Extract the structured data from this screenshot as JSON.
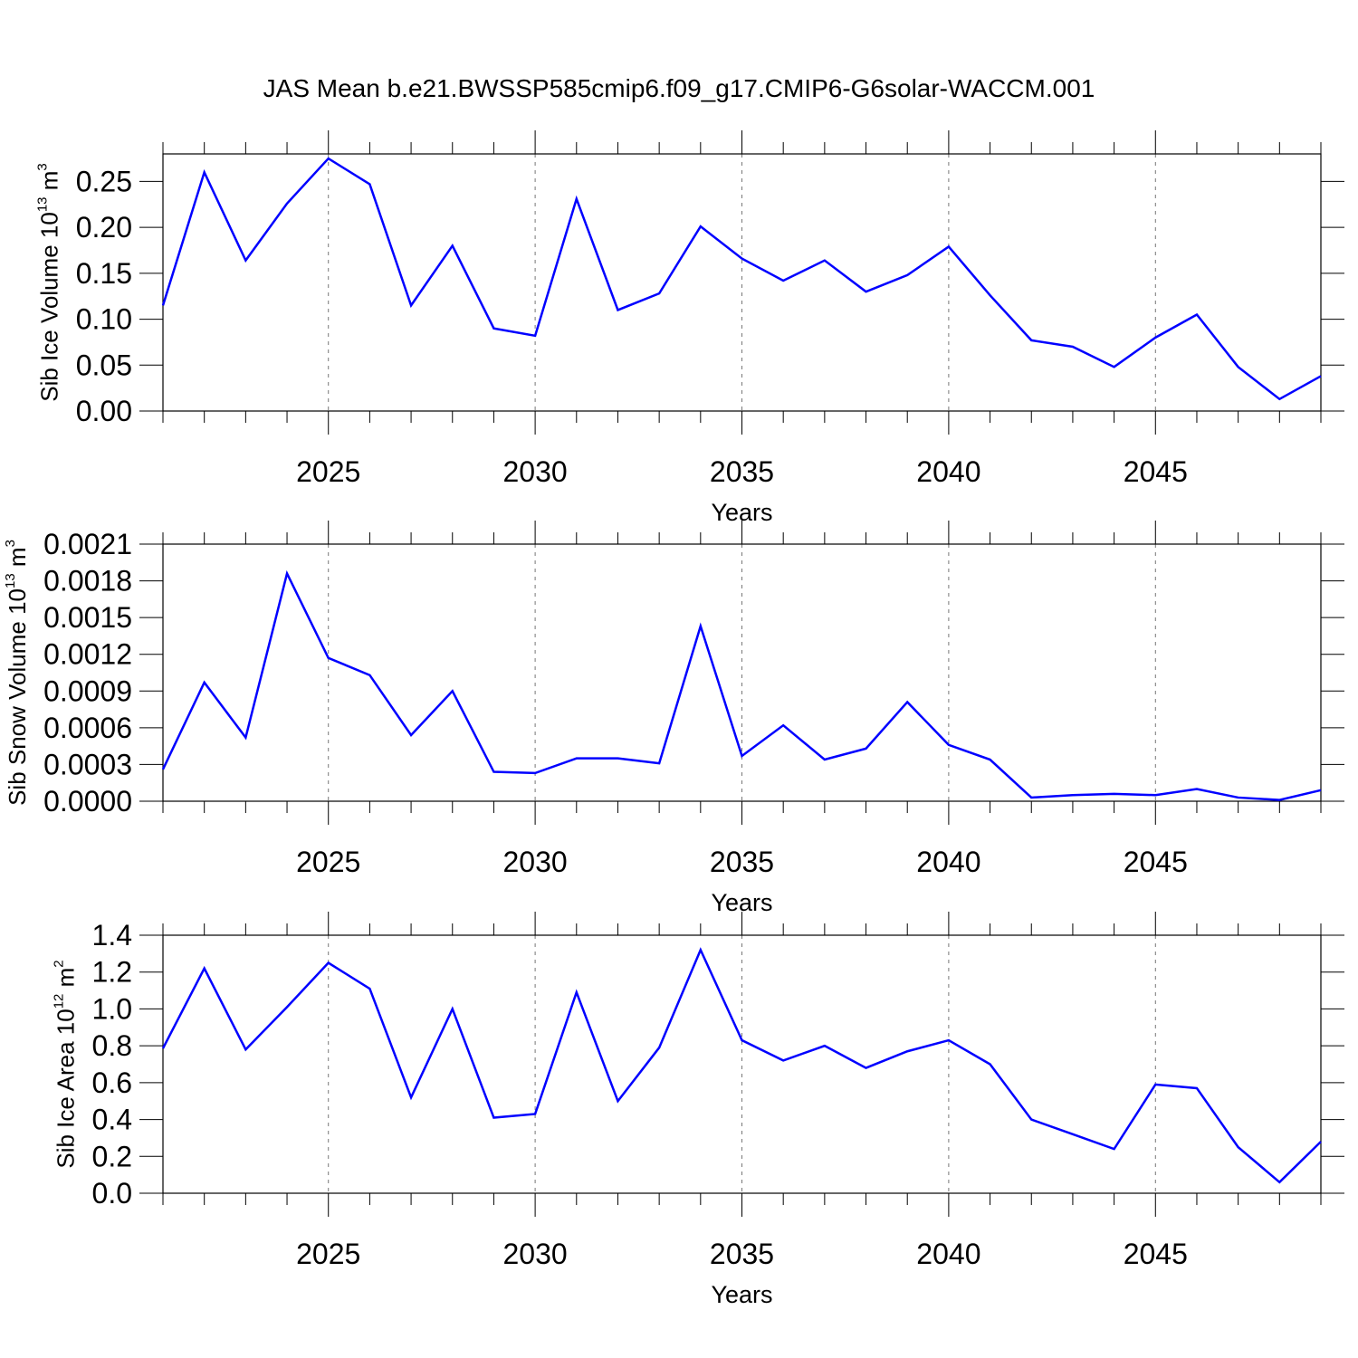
{
  "chart_data": [
    {
      "type": "line",
      "title": "JAS Mean b.e21.BWSSP585cmip6.f09_g17.CMIP6-G6solar-WACCM.001",
      "x": [
        2021,
        2022,
        2023,
        2024,
        2025,
        2026,
        2027,
        2028,
        2029,
        2030,
        2031,
        2032,
        2033,
        2034,
        2035,
        2036,
        2037,
        2038,
        2039,
        2040,
        2041,
        2042,
        2043,
        2044,
        2045,
        2046,
        2047,
        2048,
        2049
      ],
      "values": [
        0.115,
        0.26,
        0.164,
        0.226,
        0.275,
        0.247,
        0.115,
        0.18,
        0.09,
        0.082,
        0.231,
        0.11,
        0.128,
        0.201,
        0.166,
        0.142,
        0.164,
        0.13,
        0.148,
        0.179,
        0.126,
        0.077,
        0.07,
        0.048,
        0.08,
        0.105,
        0.048,
        0.013,
        0.038
      ],
      "color": "#0000ff",
      "xlim": [
        2021,
        2049
      ],
      "xticks": [
        2025,
        2030,
        2035,
        2040,
        2045
      ],
      "xminor_ticks": [
        2021,
        2022,
        2023,
        2024,
        2026,
        2027,
        2028,
        2029,
        2031,
        2032,
        2033,
        2034,
        2036,
        2037,
        2038,
        2039,
        2041,
        2042,
        2043,
        2044,
        2046,
        2047,
        2048,
        2049
      ],
      "ylim": [
        0,
        0.28
      ],
      "yticks": [
        {
          "value": 0,
          "label": "0.00"
        },
        0.05,
        {
          "value": 0.1,
          "label": "0.10"
        },
        0.15,
        {
          "value": 0.2,
          "label": "0.20"
        },
        0.25
      ],
      "grid": true,
      "xlabel": "Years",
      "ylabel": [
        "Sib Ice Volume 10",
        "13",
        " m",
        "3"
      ]
    },
    {
      "type": "line",
      "x": [
        2021,
        2022,
        2023,
        2024,
        2025,
        2026,
        2027,
        2028,
        2029,
        2030,
        2031,
        2032,
        2033,
        2034,
        2035,
        2036,
        2037,
        2038,
        2039,
        2040,
        2041,
        2042,
        2043,
        2044,
        2045,
        2046,
        2047,
        2048,
        2049
      ],
      "values": [
        0.00026,
        0.00097,
        0.00052,
        0.00186,
        0.00117,
        0.00103,
        0.00054,
        0.0009,
        0.00024,
        0.00023,
        0.00035,
        0.00035,
        0.00031,
        0.00143,
        0.00037,
        0.00062,
        0.00034,
        0.00043,
        0.00081,
        0.00046,
        0.00034,
        3e-05,
        5e-05,
        6e-05,
        5e-05,
        0.0001,
        3e-05,
        1e-05,
        9e-05
      ],
      "color": "#0000ff",
      "xlim": [
        2021,
        2049
      ],
      "xticks": [
        2025,
        2030,
        2035,
        2040,
        2045
      ],
      "xminor_ticks": [
        2021,
        2022,
        2023,
        2024,
        2026,
        2027,
        2028,
        2029,
        2031,
        2032,
        2033,
        2034,
        2036,
        2037,
        2038,
        2039,
        2041,
        2042,
        2043,
        2044,
        2046,
        2047,
        2048,
        2049
      ],
      "ylim": [
        0,
        0.0021
      ],
      "yticks": [
        {
          "value": 0,
          "label": "0.0000"
        },
        0.0003,
        0.0006,
        0.0009,
        0.0012,
        0.0015,
        0.0018,
        0.0021
      ],
      "grid": true,
      "xlabel": "Years",
      "ylabel": [
        "Sib Snow Volume 10",
        "13",
        " m",
        "3"
      ]
    },
    {
      "type": "line",
      "x": [
        2021,
        2022,
        2023,
        2024,
        2025,
        2026,
        2027,
        2028,
        2029,
        2030,
        2031,
        2032,
        2033,
        2034,
        2035,
        2036,
        2037,
        2038,
        2039,
        2040,
        2041,
        2042,
        2043,
        2044,
        2045,
        2046,
        2047,
        2048,
        2049
      ],
      "values": [
        0.786,
        1.22,
        0.78,
        1.01,
        1.25,
        1.11,
        0.52,
        1.0,
        0.41,
        0.43,
        1.09,
        0.5,
        0.79,
        1.32,
        0.83,
        0.72,
        0.8,
        0.68,
        0.77,
        0.83,
        0.7,
        0.4,
        0.32,
        0.24,
        0.59,
        0.57,
        0.25,
        0.06,
        0.28
      ],
      "color": "#0000ff",
      "xlim": [
        2021,
        2049
      ],
      "xticks": [
        2025,
        2030,
        2035,
        2040,
        2045
      ],
      "xminor_ticks": [
        2021,
        2022,
        2023,
        2024,
        2026,
        2027,
        2028,
        2029,
        2031,
        2032,
        2033,
        2034,
        2036,
        2037,
        2038,
        2039,
        2041,
        2042,
        2043,
        2044,
        2046,
        2047,
        2048,
        2049
      ],
      "ylim": [
        0,
        1.4
      ],
      "yticks": [
        {
          "value": 0,
          "label": "0.0"
        },
        0.2,
        0.4,
        0.6,
        0.8,
        {
          "value": 1,
          "label": "1.0"
        },
        1.2,
        1.4
      ],
      "grid": true,
      "xlabel": "Years",
      "ylabel": [
        "Sib Ice Area 10",
        "12",
        " m",
        "2"
      ]
    }
  ]
}
